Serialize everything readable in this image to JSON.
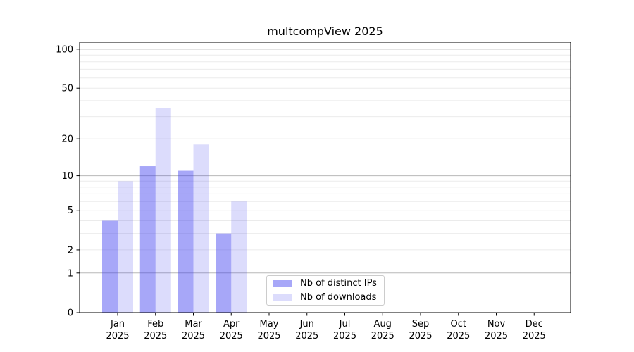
{
  "chart_data": {
    "type": "bar",
    "title": "multcompView 2025",
    "categories": [
      "Jan",
      "Feb",
      "Mar",
      "Apr",
      "May",
      "Jun",
      "Jul",
      "Aug",
      "Sep",
      "Oct",
      "Nov",
      "Dec"
    ],
    "x_year": "2025",
    "series": [
      {
        "name": "Nb of distinct IPs",
        "color": "rgba(60,60,240,0.45)",
        "values": [
          4,
          12,
          11,
          3,
          0,
          0,
          0,
          0,
          0,
          0,
          0,
          0
        ]
      },
      {
        "name": "Nb of downloads",
        "color": "rgba(60,60,240,0.18)",
        "values": [
          9,
          35,
          18,
          6,
          0,
          0,
          0,
          0,
          0,
          0,
          0,
          0
        ]
      }
    ],
    "xlabel": "",
    "ylabel": "",
    "yscale": "log1p",
    "ylim": [
      0,
      113
    ],
    "yticks": [
      0,
      1,
      2,
      5,
      10,
      20,
      50,
      100
    ],
    "major_gridlines": [
      1,
      10,
      100
    ],
    "grid": true,
    "legend_position": "inside bottom-center",
    "colors": {
      "major_grid": "#b8b8b8",
      "minor_grid": "#ebebeb",
      "axis": "#000000",
      "text": "#000000"
    }
  }
}
